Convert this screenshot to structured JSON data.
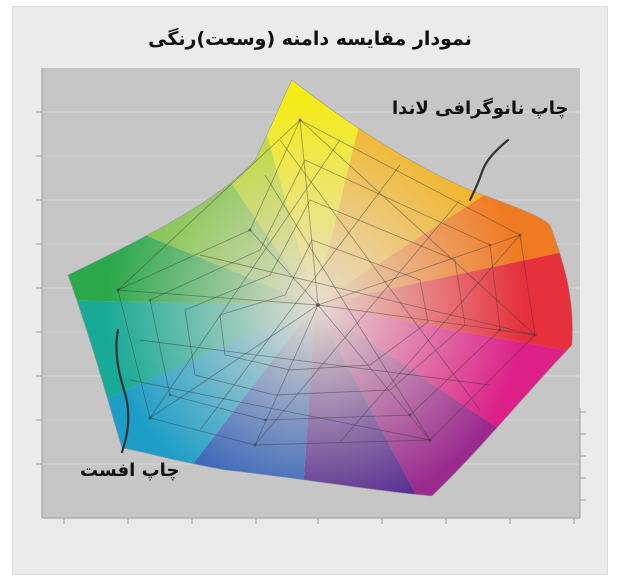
{
  "title": "نمودار مقایسه دامنه (وسعت)رنگی",
  "callouts": {
    "landa": "چاپ نانوگرافی لاندا",
    "offset": "چاپ افست"
  },
  "colors": {
    "background": "#ebebeb",
    "plot_area": "#c6c6c6",
    "yellow": "#f4ec14",
    "orange": "#f08a1e",
    "red": "#e8343a",
    "magenta": "#e0208c",
    "purple": "#5a2a8c",
    "blue": "#2a70c0",
    "cyan": "#20b0c8",
    "green": "#2aa84a",
    "center": "#d8d0c8"
  }
}
